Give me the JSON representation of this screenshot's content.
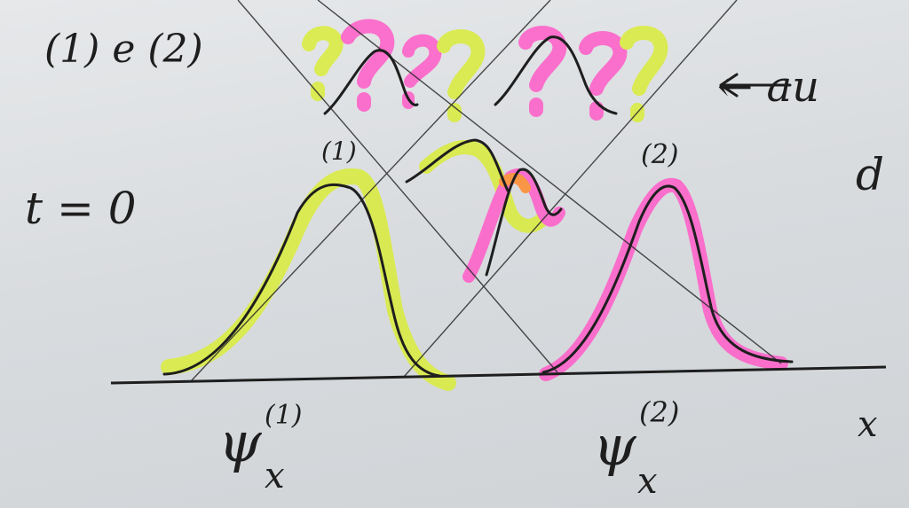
{
  "labels": {
    "header": "(1) e (2)",
    "time": "t = 0",
    "peak_1": "(1)",
    "peak_2": "(2)",
    "psi_symbol": "ψ",
    "psi_1_sup": "(1)",
    "psi_1_sub": "x",
    "psi_2_sup": "(2)",
    "psi_2_sub": "x",
    "x_axis": "x",
    "arrow_note": "← au",
    "margin_note": "d",
    "question_marks": [
      "?",
      "?",
      "?",
      "?",
      "?"
    ]
  },
  "colors": {
    "ink": "#1e1e1e",
    "highlight_yellow": "#d9ec3a",
    "highlight_pink": "#ff5cc8",
    "overlap_orange": "#ff8a2a"
  }
}
